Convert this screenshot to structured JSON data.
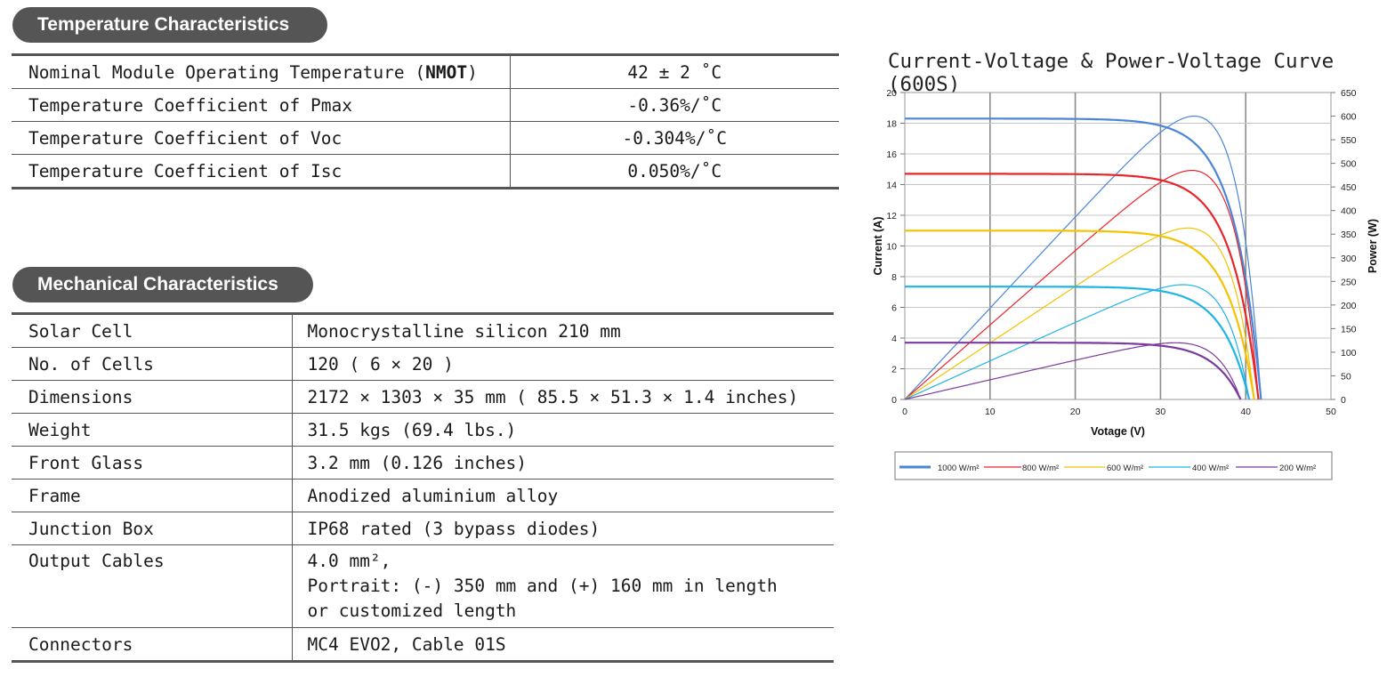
{
  "temperature": {
    "heading": "Temperature  Characteristics",
    "rows": [
      {
        "key": "Nominal Module Operating Temperature (",
        "key_bold": "NMOT",
        "key_tail": ")",
        "value": "42 ± 2 ˚C"
      },
      {
        "key": "Temperature Coefficient of Pmax",
        "value": "-0.36%/˚C"
      },
      {
        "key": "Temperature Coefficient of Voc",
        "value": "-0.304%/˚C"
      },
      {
        "key": "Temperature Coefficient of Isc",
        "value": "0.050%/˚C"
      }
    ]
  },
  "mechanical": {
    "heading": "Mechanical  Characteristics",
    "rows": [
      {
        "key": "Solar Cell",
        "value": "Monocrystalline silicon 210 mm"
      },
      {
        "key": "No. of Cells",
        "value": "120 ( 6 × 20 )"
      },
      {
        "key": "Dimensions",
        "value": "2172 × 1303 × 35 mm ( 85.5 × 51.3 × 1.4 inches)"
      },
      {
        "key": "Weight",
        "value": "31.5 kgs  (69.4 lbs.)"
      },
      {
        "key": "Front Glass",
        "value": "3.2 mm (0.126 inches)"
      },
      {
        "key": "Frame",
        "value": "Anodized aluminium alloy"
      },
      {
        "key": "Junction Box",
        "value": "IP68 rated (3 bypass diodes)"
      },
      {
        "key": "Output Cables",
        "value": "4.0 mm²,\nPortrait: (-) 350 mm and (+) 160 mm in length\nor customized length"
      },
      {
        "key": "Connectors",
        "value": "MC4 EVO2, Cable 01S"
      }
    ]
  },
  "chart_data": {
    "type": "line",
    "title": "Current-Voltage & Power-Voltage Curve (600S)",
    "xlabel": "Votage (V)",
    "ylabel": "Current (A)",
    "y2label": "Power (W)",
    "xlim": [
      0,
      50
    ],
    "ylim": [
      0,
      20
    ],
    "y2lim": [
      0,
      650
    ],
    "xticks": [
      0,
      10,
      20,
      30,
      40,
      50
    ],
    "yticks": [
      0,
      2,
      4,
      6,
      8,
      10,
      12,
      14,
      16,
      18,
      20
    ],
    "y2ticks": [
      0,
      50,
      100,
      150,
      200,
      250,
      300,
      350,
      400,
      450,
      500,
      550,
      600,
      650
    ],
    "grid": true,
    "legend_position": "bottom",
    "series": [
      {
        "name": "1000 W/m²",
        "color": "#4a86d8",
        "isc": 18.3,
        "voc": 41.8,
        "v_mp": 34.6,
        "p_max": 600
      },
      {
        "name": "800 W/m²",
        "color": "#e8242a",
        "isc": 14.7,
        "voc": 41.5,
        "v_mp": 34.5,
        "p_max": 485
      },
      {
        "name": "600 W/m²",
        "color": "#f5c200",
        "isc": 11.0,
        "voc": 41.0,
        "v_mp": 34.8,
        "p_max": 363
      },
      {
        "name": "400 W/m²",
        "color": "#1fb4e6",
        "isc": 7.35,
        "voc": 40.4,
        "v_mp": 34.8,
        "p_max": 243
      },
      {
        "name": "200 W/m²",
        "color": "#7a3aa0",
        "isc": 3.7,
        "voc": 39.4,
        "v_mp": 34.4,
        "p_max": 120
      }
    ]
  }
}
